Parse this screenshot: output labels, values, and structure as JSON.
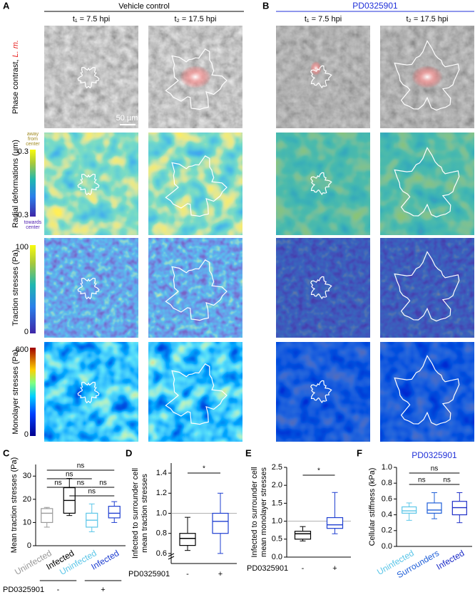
{
  "figure": {
    "panels": [
      "A",
      "B"
    ],
    "conditions": [
      "Vehicle control",
      "PD0325901"
    ],
    "timepoints": [
      "t₁ = 7.5 hpi",
      "t₂ = 17.5 hpi",
      "t₁ = 7.5 hpi",
      "t₂ = 17.5 hpi"
    ],
    "row_labels": [
      "Phase contrast, ",
      "Radial deformations (µm)",
      "Traction stresses (Pa)",
      "Monolayer stresses (Pa)"
    ],
    "organism": "L. m.",
    "scale_bar": "50 µm",
    "colorbars": [
      {
        "top": 0.3,
        "bottom": -0.3,
        "above": [
          "away",
          "from",
          "center"
        ],
        "below": [
          "towards",
          "center"
        ]
      },
      {
        "top": 100,
        "bottom": 0
      },
      {
        "top": 600,
        "bottom": 0
      }
    ]
  },
  "chart_data": [
    {
      "type": "box",
      "panel": "C",
      "ylabel": [
        "Mean traction stresses (Pa)"
      ],
      "categories": [
        "Uninfected",
        "Infected",
        "Uninfected",
        "Infected"
      ],
      "colors": [
        "#9a9a9a",
        "#000000",
        "#5cc6e8",
        "#1f3fd1"
      ],
      "boxes": [
        {
          "min": 8,
          "q1": 10,
          "median": 14,
          "q3": 16,
          "max": 16.5
        },
        {
          "min": 13,
          "q1": 14,
          "median": 19.5,
          "q3": 25,
          "max": 29
        },
        {
          "min": 6,
          "q1": 8,
          "median": 11,
          "q3": 14,
          "max": 18
        },
        {
          "min": 10,
          "q1": 12,
          "median": 14,
          "q3": 17,
          "max": 19
        }
      ],
      "ylim": [
        0,
        35
      ],
      "yticks": [
        0,
        10,
        20,
        30
      ],
      "annotations": [
        "ns",
        "ns",
        "ns",
        "ns",
        "ns",
        "ns"
      ],
      "xlabel": "PD0325901",
      "groups": [
        "-",
        "+"
      ]
    },
    {
      "type": "box",
      "panel": "D",
      "ylabel": [
        "Infected to surrounder cell",
        "mean traction stresses"
      ],
      "categories": [
        "-",
        "+"
      ],
      "colors": [
        "#000000",
        "#1f3fd1"
      ],
      "boxes": [
        {
          "min": 0.63,
          "q1": 0.68,
          "median": 0.75,
          "q3": 0.8,
          "max": 0.96
        },
        {
          "min": 0.6,
          "q1": 0.8,
          "median": 0.92,
          "q3": 1.0,
          "max": 1.2
        }
      ],
      "ylim": [
        0.5,
        1.5
      ],
      "yticks": [
        0.6,
        0.8,
        {
          "value": 1,
          "label": "1.0"
        },
        1.2,
        1.4
      ],
      "reference": 1,
      "annotations": [
        "*"
      ],
      "xlabel": "PD0325901"
    },
    {
      "type": "box",
      "panel": "E",
      "ylabel": [
        "Infected to surrounder cell",
        "mean monolayer stresses"
      ],
      "categories": [
        "-",
        "+"
      ],
      "colors": [
        "#000000",
        "#1f3fd1"
      ],
      "boxes": [
        {
          "min": 0.45,
          "q1": 0.5,
          "median": 0.65,
          "q3": 0.72,
          "max": 0.85
        },
        {
          "min": 0.65,
          "q1": 0.8,
          "median": 0.9,
          "q3": 1.1,
          "max": 1.8
        }
      ],
      "ylim": [
        0,
        2.5
      ],
      "yticks": [
        {
          "value": 0,
          "label": "0.0"
        },
        0.5,
        {
          "value": 1,
          "label": "1.0"
        },
        1.5,
        {
          "value": 2,
          "label": "2.0"
        },
        2.5
      ],
      "reference": 1,
      "annotations": [
        "*"
      ],
      "xlabel": "PD0325901"
    },
    {
      "type": "box",
      "panel": "F",
      "title": "PD0325901",
      "ylabel": [
        "Cellular stiffness (kPa)"
      ],
      "categories": [
        "Uninfected",
        "Surrounders",
        "Infected"
      ],
      "colors": [
        "#5cc6e8",
        "#1f5fd8",
        "#1f2fc8"
      ],
      "boxes": [
        {
          "min": 0.33,
          "q1": 0.42,
          "median": 0.45,
          "q3": 0.5,
          "max": 0.55
        },
        {
          "min": 0.35,
          "q1": 0.42,
          "median": 0.46,
          "q3": 0.55,
          "max": 0.68
        },
        {
          "min": 0.3,
          "q1": 0.4,
          "median": 0.49,
          "q3": 0.57,
          "max": 0.68
        }
      ],
      "ylim": [
        0,
        1
      ],
      "yticks": [
        {
          "value": 0,
          "label": "0.0"
        },
        0.2,
        0.4,
        0.6,
        0.8,
        {
          "value": 1,
          "label": "1.0"
        }
      ],
      "annotations": [
        "ns",
        "ns",
        "ns"
      ]
    }
  ]
}
